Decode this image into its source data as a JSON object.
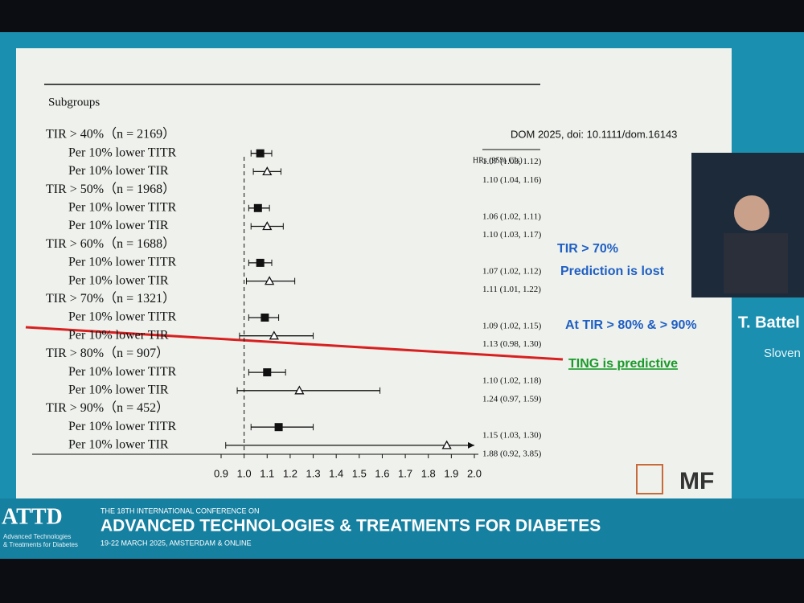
{
  "chart_data": {
    "type": "forest",
    "column_header": "Subgroups",
    "value_header": "HRs (95% CIs)",
    "categories": [
      "TIR > 40%（n = 2169）",
      "Per 10% lower TITR",
      "Per 10% lower TIR",
      "TIR > 50%（n = 1968）",
      "Per 10% lower TITR",
      "Per 10% lower TIR",
      "TIR > 60%（n = 1688）",
      "Per 10% lower TITR",
      "Per 10% lower TIR",
      "TIR > 70%（n = 1321）",
      "Per 10% lower TITR",
      "Per 10% lower TIR",
      "TIR > 80%（n = 907）",
      "Per 10% lower TITR",
      "Per 10% lower TIR",
      "TIR > 90%（n = 452）",
      "Per 10% lower TITR",
      "Per 10% lower TIR"
    ],
    "values": [
      null,
      1.07,
      1.1,
      null,
      1.06,
      1.1,
      null,
      1.07,
      1.11,
      null,
      1.09,
      1.13,
      null,
      1.1,
      1.24,
      null,
      1.15,
      1.88
    ],
    "ci_low": [
      null,
      1.03,
      1.04,
      null,
      1.02,
      1.03,
      null,
      1.02,
      1.01,
      null,
      1.02,
      0.98,
      null,
      1.02,
      0.97,
      null,
      1.03,
      0.92
    ],
    "ci_high": [
      null,
      1.12,
      1.16,
      null,
      1.11,
      1.17,
      null,
      1.12,
      1.22,
      null,
      1.15,
      1.3,
      null,
      1.18,
      1.59,
      null,
      1.3,
      3.85
    ],
    "value_labels": [
      null,
      "1.07 (1.03, 1.12)",
      "1.10 (1.04, 1.16)",
      null,
      "1.06 (1.02, 1.11)",
      "1.10 (1.03, 1.17)",
      null,
      "1.07 (1.02, 1.12)",
      "1.11 (1.01, 1.22)",
      null,
      "1.09 (1.02, 1.15)",
      "1.13 (0.98, 1.30)",
      null,
      "1.10 (1.02, 1.18)",
      "1.24 (0.97, 1.59)",
      null,
      "1.15 (1.03, 1.30)",
      "1.88 (0.92, 3.85)"
    ],
    "markers": [
      "none",
      "square",
      "triangle",
      "none",
      "square",
      "triangle",
      "none",
      "square",
      "triangle",
      "none",
      "square",
      "triangle",
      "none",
      "square",
      "triangle",
      "none",
      "square",
      "triangle"
    ],
    "reference_line": {
      "value": 1,
      "label": "1.0"
    },
    "xlim": [
      0.9,
      2.0
    ],
    "xticks": [
      0.9,
      {
        "value": 1,
        "label": "1.0"
      },
      1.1,
      1.2,
      1.3,
      1.4,
      1.5,
      1.6,
      1.7,
      1.8,
      1.9,
      {
        "value": 2,
        "label": "2.0"
      }
    ],
    "color": "#111111"
  },
  "slide": {
    "citation": "DOM 2025, doi: 10.1111/dom.16143",
    "annotations": [
      "TIR > 70%",
      "Prediction is lost",
      "At TIR > 80% & > 90%",
      "TING is predictive"
    ],
    "logo": "MF"
  },
  "speaker": {
    "name": "T. Battel",
    "country": "Sloven"
  },
  "banner": {
    "logo": "ATTD",
    "logo_sub1": "Advanced Technologies",
    "logo_sub2": "& Treatments for Diabetes",
    "line1": "THE 18TH INTERNATIONAL CONFERENCE ON",
    "title": "ADVANCED TECHNOLOGIES & TREATMENTS FOR DIABETES",
    "dates": "19-22 MARCH 2025, AMSTERDAM & ONLINE"
  }
}
